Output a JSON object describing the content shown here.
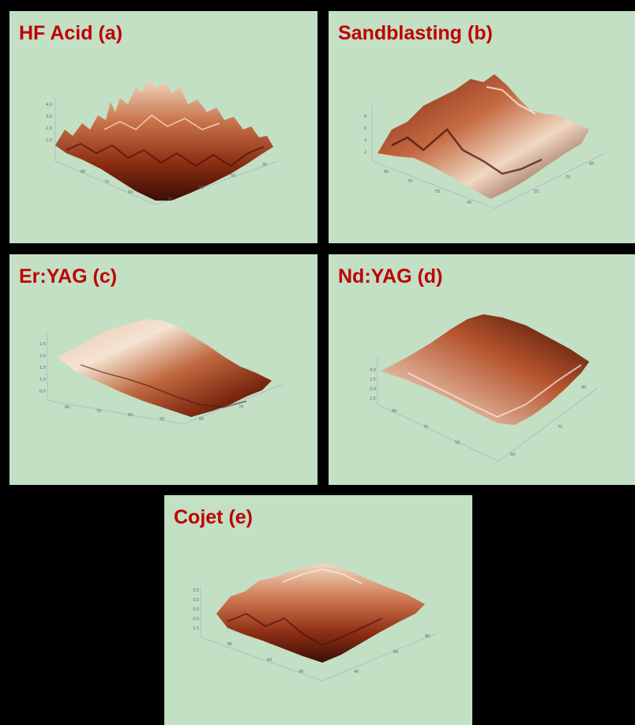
{
  "panels": [
    {
      "id": "a",
      "title": "HF Acid (a)"
    },
    {
      "id": "b",
      "title": "Sandblasting (b)"
    },
    {
      "id": "c",
      "title": "Er:YAG (c)"
    },
    {
      "id": "d",
      "title": "Nd:YAG (d)"
    },
    {
      "id": "e",
      "title": "Cojet (e)"
    }
  ],
  "colors": {
    "panel_background": "#c3dfc4",
    "title_text": "#c00000",
    "surface_dark": "#3a0e06",
    "surface_mid": "#a8401e",
    "surface_light": "#f2dcc6"
  }
}
